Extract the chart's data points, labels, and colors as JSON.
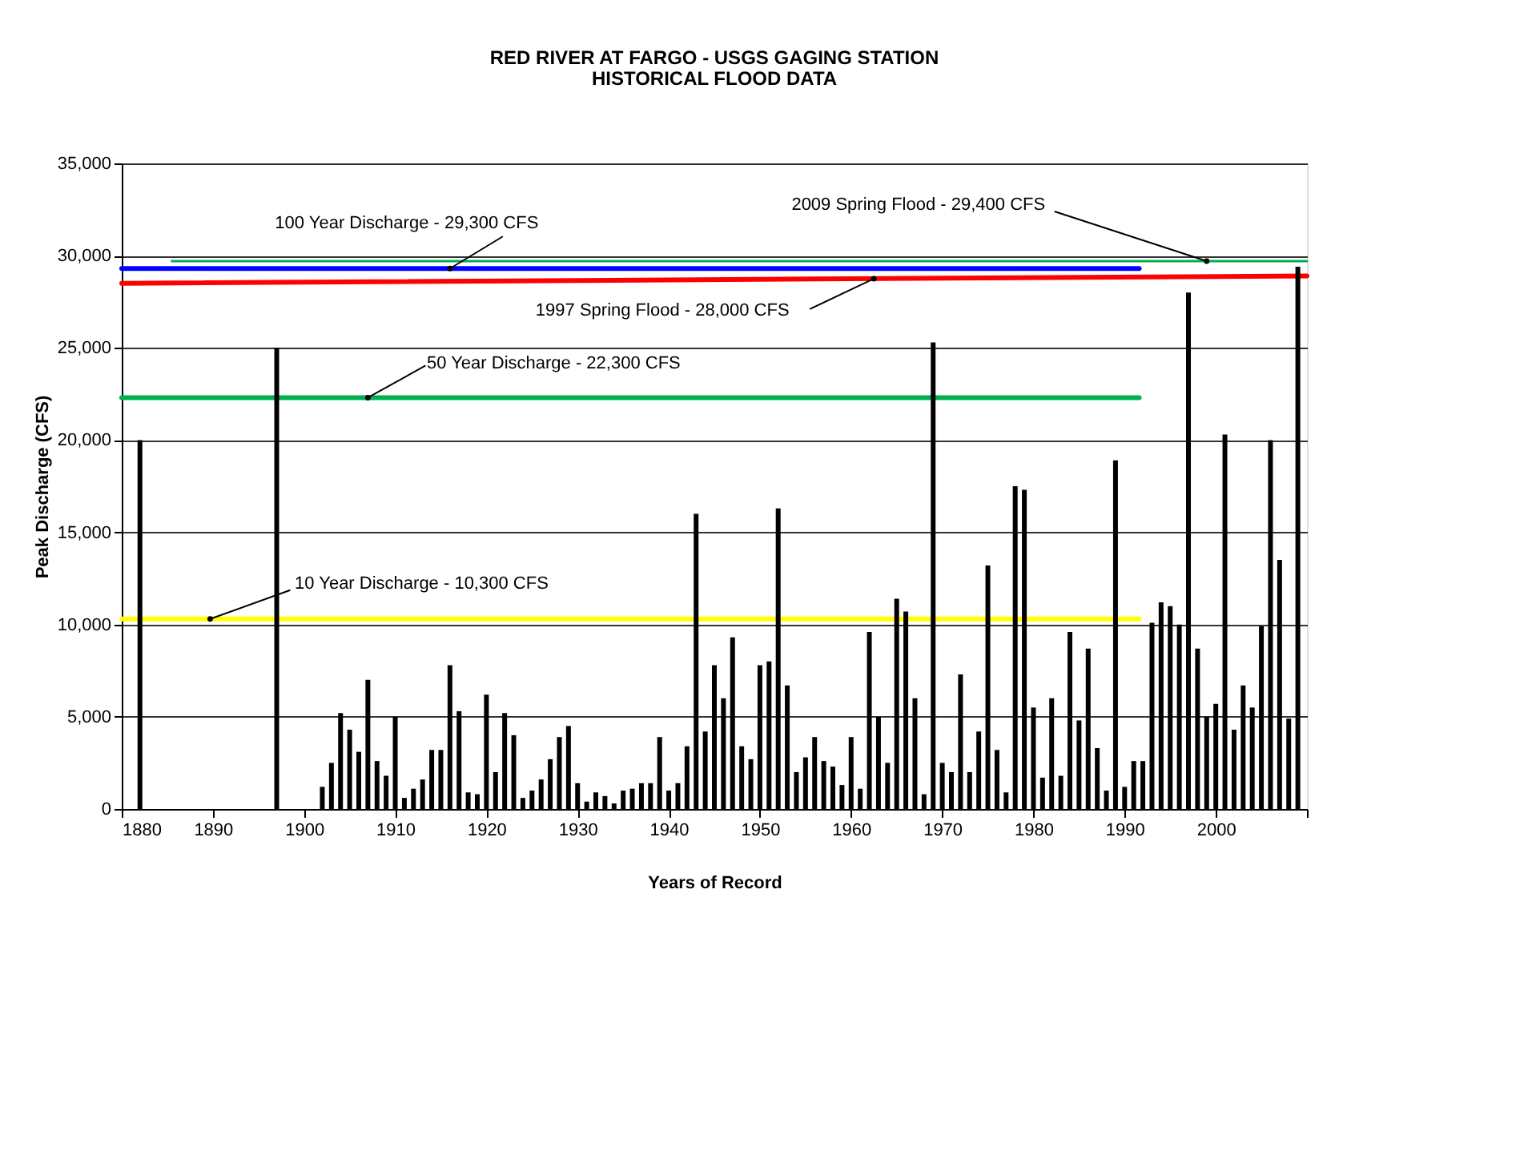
{
  "chart_data": {
    "type": "bar",
    "title": "RED RIVER AT FARGO - USGS GAGING STATION",
    "subtitle": "HISTORICAL FLOOD DATA",
    "xlabel": "Years of Record",
    "ylabel": "Peak Discharge (CFS)",
    "xlim": [
      1880,
      2010
    ],
    "ylim": [
      0,
      35000
    ],
    "xticks": [
      1880,
      1890,
      1900,
      1910,
      1920,
      1930,
      1940,
      1950,
      1960,
      1970,
      1980,
      1990,
      2000,
      {
        "value": 2010,
        "label": null
      }
    ],
    "yticks": [
      {
        "value": 0,
        "label": "0"
      },
      {
        "value": 5000,
        "label": "5,000"
      },
      {
        "value": 10000,
        "label": "10,000"
      },
      {
        "value": 15000,
        "label": "15,000"
      },
      {
        "value": 20000,
        "label": "20,000"
      },
      {
        "value": 25000,
        "label": "25,000"
      },
      {
        "value": 30000,
        "label": "30,000"
      },
      {
        "value": 35000,
        "label": "35,000"
      }
    ],
    "grid": "y",
    "series": [
      {
        "color": "#000000",
        "x": [
          1882,
          1897,
          1902,
          1903,
          1904,
          1905,
          1906,
          1907,
          1908,
          1909,
          1910,
          1911,
          1912,
          1913,
          1914,
          1915,
          1916,
          1917,
          1918,
          1919,
          1920,
          1921,
          1922,
          1923,
          1924,
          1925,
          1926,
          1927,
          1928,
          1929,
          1930,
          1931,
          1932,
          1933,
          1934,
          1935,
          1936,
          1937,
          1938,
          1939,
          1940,
          1941,
          1942,
          1943,
          1944,
          1945,
          1946,
          1947,
          1948,
          1949,
          1950,
          1951,
          1952,
          1953,
          1954,
          1955,
          1956,
          1957,
          1958,
          1959,
          1960,
          1961,
          1962,
          1963,
          1964,
          1965,
          1966,
          1967,
          1968,
          1969,
          1970,
          1971,
          1972,
          1973,
          1974,
          1975,
          1976,
          1977,
          1978,
          1979,
          1980,
          1981,
          1982,
          1983,
          1984,
          1985,
          1986,
          1987,
          1988,
          1989,
          1990,
          1991,
          1992,
          1993,
          1994,
          1995,
          1996,
          1997,
          1998,
          1999,
          2000,
          2001,
          2002,
          2003,
          2004,
          2005,
          2006,
          2007,
          2008,
          2009
        ],
        "values": [
          20000,
          25000,
          1200,
          2500,
          5200,
          4300,
          3100,
          7000,
          2600,
          1800,
          5000,
          600,
          1100,
          1600,
          3200,
          3200,
          7800,
          5300,
          900,
          800,
          6200,
          2000,
          5200,
          4000,
          600,
          1000,
          1600,
          2700,
          3900,
          4500,
          1400,
          400,
          900,
          700,
          300,
          1000,
          1100,
          1400,
          1400,
          3900,
          1000,
          1400,
          3400,
          16000,
          4200,
          7800,
          6000,
          9300,
          3400,
          2700,
          7800,
          8000,
          16300,
          6700,
          2000,
          2800,
          3900,
          2600,
          2300,
          1300,
          3900,
          1100,
          9600,
          5000,
          2500,
          11400,
          10700,
          6000,
          800,
          25300,
          2500,
          2000,
          7300,
          2000,
          4200,
          13200,
          3200,
          900,
          17500,
          17300,
          5500,
          1700,
          6000,
          1800,
          9600,
          4800,
          8700,
          3300,
          1000,
          18900,
          1200,
          2600,
          2600,
          10100,
          11200,
          11000,
          10000,
          28000,
          8700,
          5000,
          5700,
          20300,
          4300,
          6700,
          5500,
          9900,
          20000,
          13500,
          4900,
          29400
        ]
      },
      {
        "type": "line",
        "color": "#00b050",
        "x": [
          1885.5,
          2010
        ],
        "values": [
          29700,
          29700
        ]
      },
      {
        "type": "line",
        "color": "#0000ff",
        "x": [
          1880,
          1991.6
        ],
        "values": [
          29300,
          29300
        ]
      },
      {
        "type": "line",
        "color": "#ff0000",
        "x": [
          1880,
          2010
        ],
        "values": [
          28500,
          28900
        ]
      },
      {
        "type": "line",
        "color": "#00b050",
        "x": [
          1880,
          1991.6
        ],
        "values": [
          22300,
          22300
        ]
      },
      {
        "type": "line",
        "color": "#ffff00",
        "x": [
          1880,
          1991.6
        ],
        "values": [
          10300,
          10300
        ]
      }
    ],
    "annotations": [
      {
        "text": "100 Year Discharge - 29,300 CFS",
        "x": 1916,
        "y": 29300
      },
      {
        "text": "2009 Spring Flood - 29,400 CFS",
        "x": 1999,
        "y": 29700
      },
      {
        "text": "1997 Spring Flood - 28,000 CFS",
        "x": 1962.5,
        "y": 28750
      },
      {
        "text": "50 Year Discharge - 22,300 CFS",
        "x": 1907,
        "y": 22300
      },
      {
        "text": "10 Year Discharge - 10,300 CFS",
        "x": 1889.7,
        "y": 10300
      }
    ]
  }
}
